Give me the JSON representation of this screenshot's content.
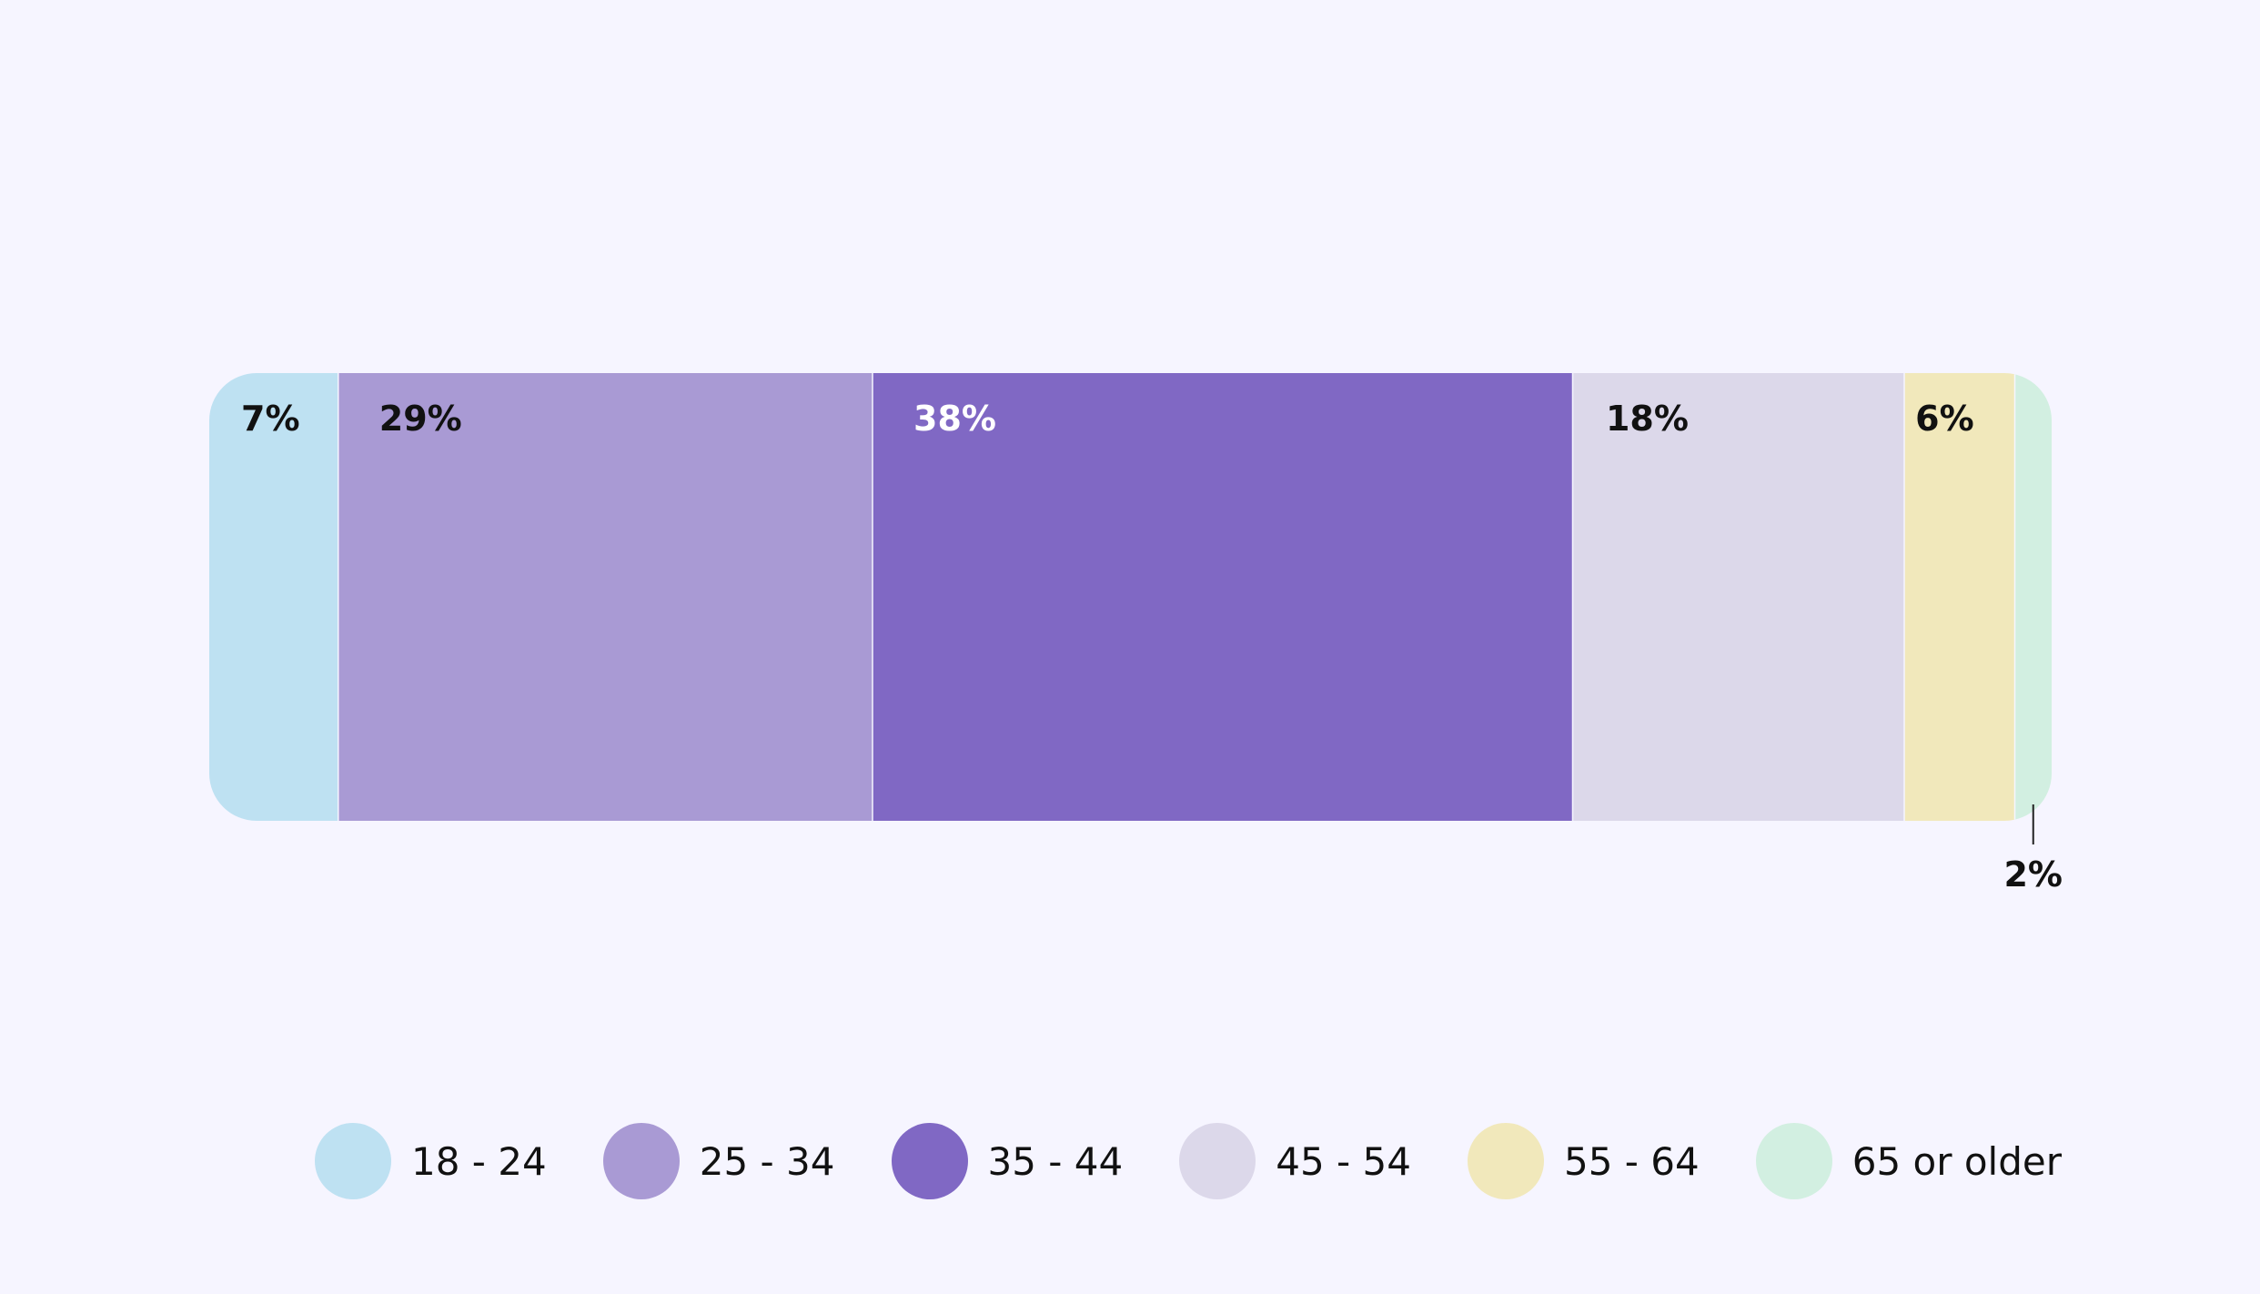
{
  "chart_data": {
    "type": "bar",
    "orientation": "horizontal",
    "stacked": true,
    "normalized": true,
    "title": "",
    "xlabel": "",
    "ylabel": "",
    "xlim": [
      0,
      100
    ],
    "grid": false,
    "legend_position": "bottom",
    "series": [
      {
        "name": "18 - 24",
        "value": 7,
        "label": "7%",
        "color": "#bee1f2",
        "label_color": "#111111"
      },
      {
        "name": "25 - 34",
        "value": 29,
        "label": "29%",
        "color": "#a99ad4",
        "label_color": "#111111"
      },
      {
        "name": "35 - 44",
        "value": 38,
        "label": "38%",
        "color": "#8068c4",
        "label_color": "#ffffff"
      },
      {
        "name": "45 - 54",
        "value": 18,
        "label": "18%",
        "color": "#dcd8ea",
        "label_color": "#111111"
      },
      {
        "name": "55 - 64",
        "value": 6,
        "label": "6%",
        "color": "#f1e8bb",
        "label_color": "#111111"
      },
      {
        "name": "65 or older",
        "value": 2,
        "label": "2%",
        "color": "#d2efe1",
        "label_color": "#111111",
        "label_outside": true
      }
    ]
  }
}
